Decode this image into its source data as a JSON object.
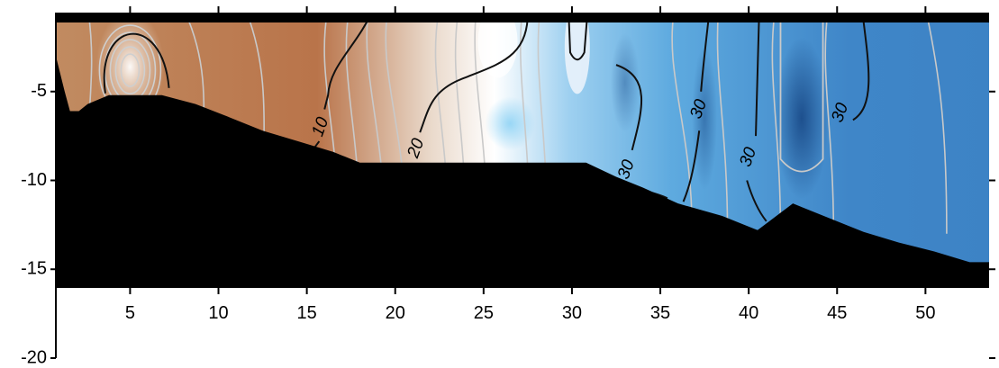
{
  "chart_data": {
    "type": "heatmap",
    "title": "",
    "xlabel": "",
    "ylabel": "",
    "xlim": [
      0.8,
      53.6
    ],
    "ylim": [
      -20,
      0
    ],
    "x_ticks": [
      5,
      10,
      15,
      20,
      25,
      30,
      35,
      40,
      45,
      50
    ],
    "x_tick_labels": [
      "5",
      "10",
      "15",
      "20",
      "25",
      "30",
      "35",
      "40",
      "45",
      "50"
    ],
    "y_ticks": [
      -5,
      -10,
      -15,
      -20
    ],
    "y_tick_labels": [
      "-5",
      "-10",
      "-15",
      "-20"
    ],
    "grid": false,
    "colorscale": [
      "#b06a35",
      "#d9a47c",
      "#f3f5f8",
      "#7cbde6",
      "#3f86c8",
      "#1f4f8c"
    ],
    "mask_color": "#000000",
    "contour_labels": [
      {
        "x": 15.8,
        "y": -7.0,
        "text": "10"
      },
      {
        "x": 21.2,
        "y": -8.2,
        "text": "20"
      },
      {
        "x": 33.1,
        "y": -9.4,
        "text": "30"
      },
      {
        "x": 37.2,
        "y": -6.0,
        "text": "30"
      },
      {
        "x": 40.0,
        "y": -8.7,
        "text": "30"
      },
      {
        "x": 45.2,
        "y": -6.2,
        "text": "30"
      }
    ],
    "field_samples": [
      {
        "x": 1,
        "y": -1.5,
        "value": 12
      },
      {
        "x": 3,
        "y": -3,
        "value": 11
      },
      {
        "x": 5,
        "y": -3.5,
        "value": 4
      },
      {
        "x": 7,
        "y": -3,
        "value": 10
      },
      {
        "x": 10,
        "y": -4,
        "value": 12
      },
      {
        "x": 14,
        "y": -4,
        "value": 12
      },
      {
        "x": 17,
        "y": -5,
        "value": 15
      },
      {
        "x": 20,
        "y": -5,
        "value": 20
      },
      {
        "x": 23,
        "y": -6,
        "value": 24
      },
      {
        "x": 26,
        "y": -5,
        "value": 26
      },
      {
        "x": 28,
        "y": -5,
        "value": 28
      },
      {
        "x": 30,
        "y": -3,
        "value": 24
      },
      {
        "x": 33,
        "y": -5,
        "value": 30
      },
      {
        "x": 36,
        "y": -5,
        "value": 32
      },
      {
        "x": 40,
        "y": -5,
        "value": 33
      },
      {
        "x": 43,
        "y": -6,
        "value": 36
      },
      {
        "x": 47,
        "y": -7,
        "value": 32
      },
      {
        "x": 52,
        "y": -10,
        "value": 31
      }
    ],
    "bottom_boundary": [
      [
        0.8,
        -3.0
      ],
      [
        1.3,
        -5.0
      ],
      [
        1.6,
        -6.1
      ],
      [
        2.1,
        -6.1
      ],
      [
        2.6,
        -5.7
      ],
      [
        3.8,
        -5.2
      ],
      [
        6.8,
        -5.2
      ],
      [
        8.7,
        -5.7
      ],
      [
        10.5,
        -6.4
      ],
      [
        12.5,
        -7.2
      ],
      [
        14.5,
        -7.8
      ],
      [
        16.5,
        -8.4
      ],
      [
        18.0,
        -9.0
      ],
      [
        23.0,
        -9.0
      ],
      [
        30.0,
        -9.0
      ],
      [
        30.8,
        -9.0
      ],
      [
        32.5,
        -9.8
      ],
      [
        34.0,
        -10.4
      ],
      [
        36.0,
        -11.3
      ],
      [
        38.5,
        -12.0
      ],
      [
        40.5,
        -12.8
      ],
      [
        42.5,
        -11.3
      ],
      [
        44.5,
        -12.1
      ],
      [
        46.5,
        -12.9
      ],
      [
        48.5,
        -13.5
      ],
      [
        50.5,
        -14.0
      ],
      [
        52.5,
        -14.6
      ],
      [
        53.6,
        -14.6
      ]
    ]
  }
}
